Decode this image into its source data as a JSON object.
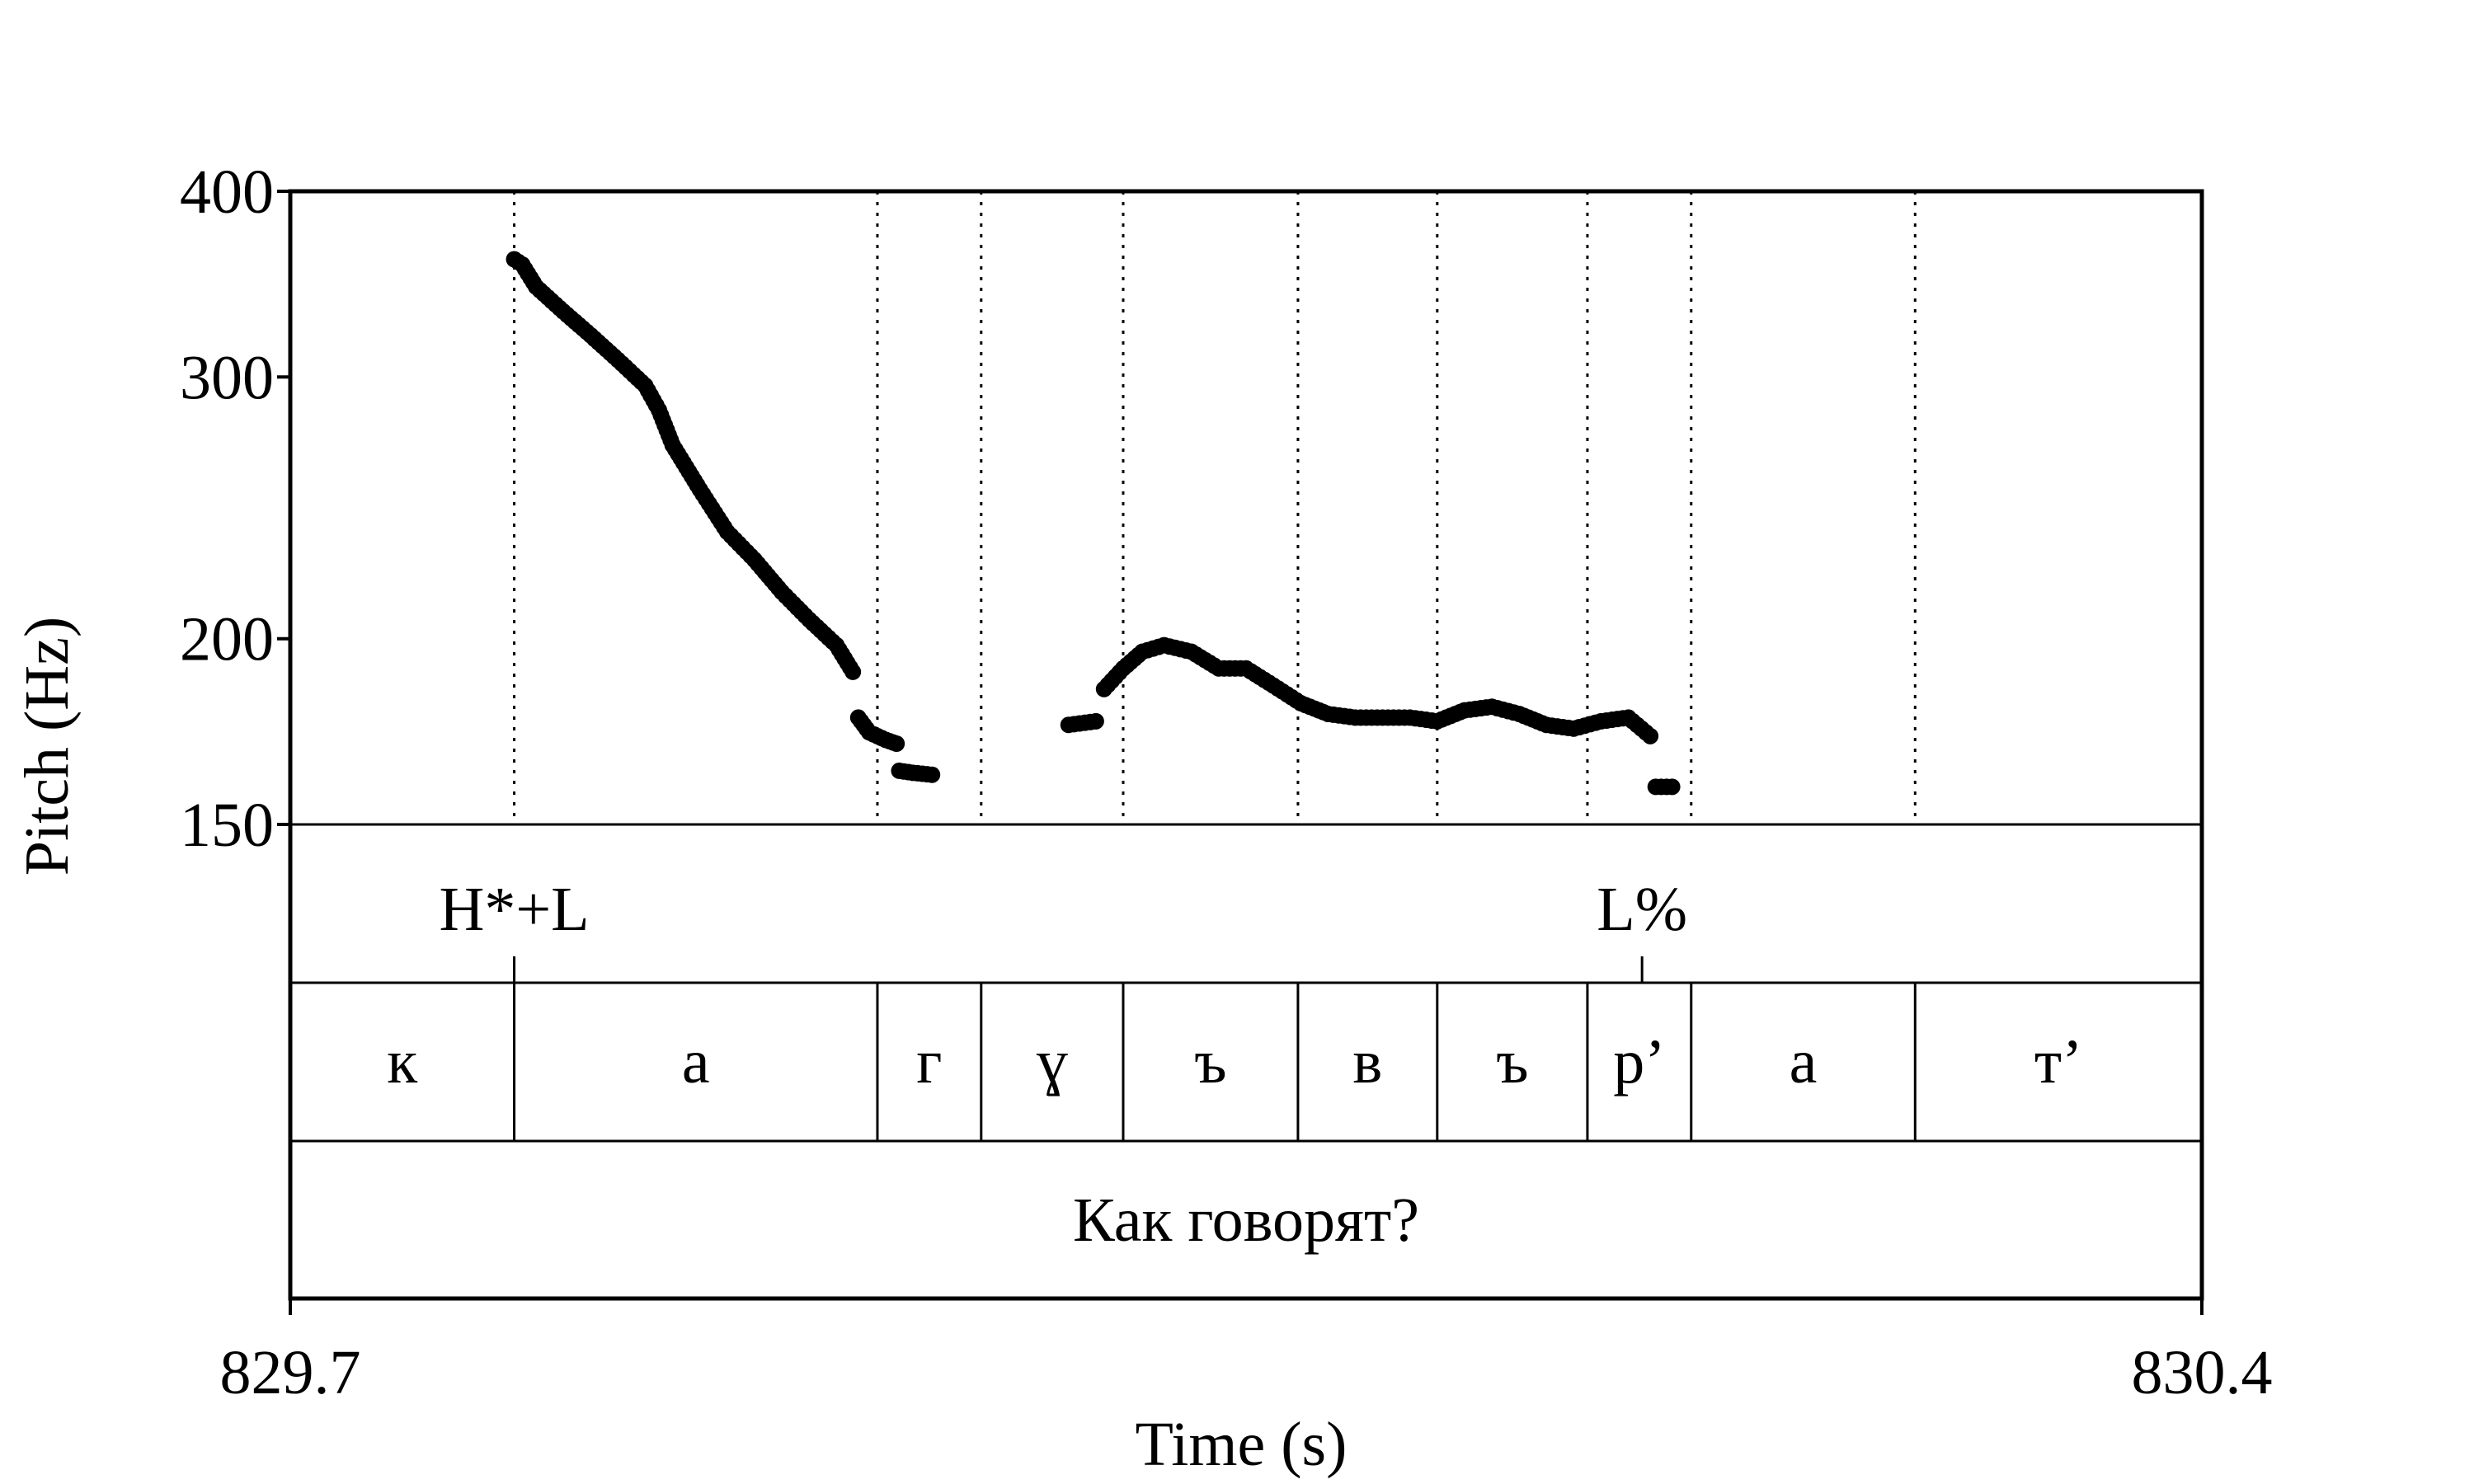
{
  "chart_data": {
    "type": "line",
    "xlabel": "Time (s)",
    "ylabel": "Pitch (Hz)",
    "xlim": [
      829.7,
      830.4
    ],
    "ylim": [
      150,
      400
    ],
    "y_scale": "log",
    "x_tick_labels": [
      "829.7",
      "830.4"
    ],
    "y_ticks": [
      150,
      200,
      300,
      400
    ],
    "y_tick_labels": [
      "150",
      "200",
      "300",
      "400"
    ],
    "grid": false,
    "boundary_line_style": "dotted",
    "series": [
      {
        "segments": [
          [
            [
              829.782,
              360
            ],
            [
              829.785,
              357
            ],
            [
              829.79,
              345
            ],
            [
              829.8,
              332
            ],
            [
              829.81,
              320
            ],
            [
              829.82,
              308
            ],
            [
              829.83,
              296
            ],
            [
              829.835,
              285
            ],
            [
              829.84,
              270
            ],
            [
              829.85,
              252
            ],
            [
              829.86,
              236
            ],
            [
              829.87,
              226
            ],
            [
              829.88,
              215
            ],
            [
              829.89,
              206
            ],
            [
              829.9,
              198
            ],
            [
              829.906,
              190
            ]
          ],
          [
            [
              829.908,
              177
            ],
            [
              829.912,
              173
            ],
            [
              829.918,
              171
            ],
            [
              829.922,
              170
            ]
          ],
          [
            [
              829.923,
              163
            ],
            [
              829.928,
              162.5
            ],
            [
              829.935,
              162
            ]
          ],
          [
            [
              829.985,
              175
            ],
            [
              829.995,
              176
            ]
          ],
          [
            [
              829.998,
              185
            ],
            [
              830.005,
              191
            ],
            [
              830.012,
              196
            ],
            [
              830.02,
              198
            ],
            [
              830.03,
              196
            ],
            [
              830.04,
              191
            ],
            [
              830.05,
              191
            ],
            [
              830.06,
              186
            ],
            [
              830.07,
              181
            ],
            [
              830.08,
              178
            ],
            [
              830.09,
              177
            ],
            [
              830.1,
              177
            ],
            [
              830.11,
              177
            ],
            [
              830.12,
              176
            ],
            [
              830.13,
              179
            ],
            [
              830.14,
              180
            ],
            [
              830.15,
              178
            ],
            [
              830.16,
              175
            ],
            [
              830.17,
              174
            ],
            [
              830.18,
              176
            ],
            [
              830.19,
              177
            ],
            [
              830.198,
              172
            ]
          ],
          [
            [
              830.2,
              159
            ],
            [
              830.206,
              159
            ]
          ]
        ]
      }
    ],
    "tiers": [
      {
        "name": "tones",
        "boundaries": [
          829.782,
          830.195
        ],
        "labels": [
          {
            "time": 829.782,
            "text": "H*+L"
          },
          {
            "time": 830.195,
            "text": "L%"
          }
        ]
      },
      {
        "name": "segments",
        "boundaries": [
          829.782,
          829.915,
          829.953,
          830.005,
          830.069,
          830.12,
          830.175,
          830.213,
          830.295
        ],
        "intervals": [
          "к",
          "а",
          "г",
          "ɣ",
          "ъ",
          "в",
          "ъ",
          "р’",
          "а",
          "т’"
        ]
      },
      {
        "name": "utterance",
        "intervals": [
          "Как говорят?"
        ]
      }
    ]
  }
}
